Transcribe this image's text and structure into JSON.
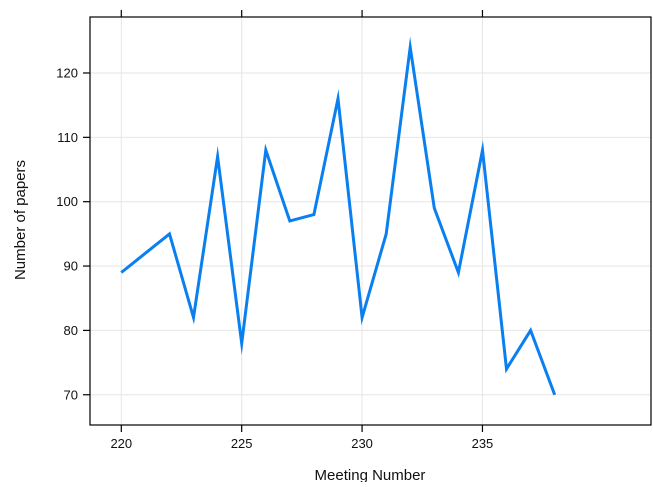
{
  "chart_data": {
    "type": "line",
    "title": "",
    "xlabel": "Meeting Number",
    "ylabel": "Number of papers",
    "x": [
      220,
      221,
      222,
      223,
      224,
      225,
      226,
      227,
      228,
      229,
      230,
      231,
      232,
      233,
      234,
      235,
      236,
      237,
      238
    ],
    "series": [
      {
        "values": [
          89,
          92,
          95,
          82,
          107,
          78,
          108,
          97,
          98,
          116,
          82,
          95,
          124,
          99,
          89,
          108,
          74,
          80,
          70
        ]
      }
    ],
    "xlim": [
      218.7,
      242.0
    ],
    "ylim": [
      65.3,
      128.7
    ],
    "xticks": [
      220,
      225,
      230,
      235
    ],
    "yticks": [
      70,
      80,
      90,
      100,
      110,
      120
    ],
    "grid": true,
    "line_color": "#0a7ff0",
    "grid_color": "#e6e6e6",
    "axis_color": "#000000"
  }
}
